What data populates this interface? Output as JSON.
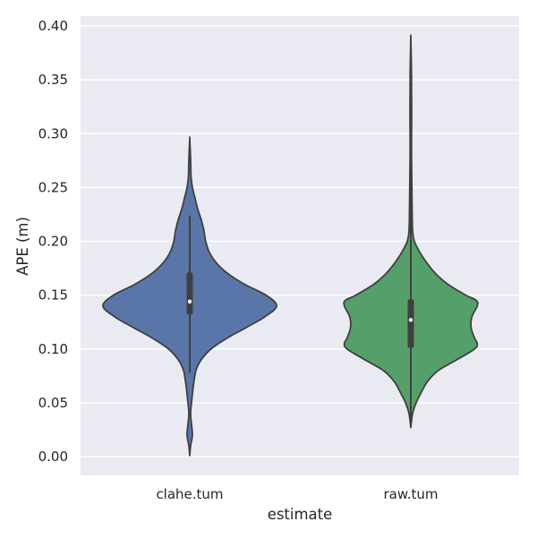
{
  "chart_data": {
    "type": "violin",
    "title": "",
    "xlabel": "estimate",
    "ylabel": "APE (m)",
    "ylim": [
      -0.017,
      0.408
    ],
    "yticks": [
      0.0,
      0.05,
      0.1,
      0.15,
      0.2,
      0.25,
      0.3,
      0.35,
      0.4
    ],
    "ytick_labels": [
      "0.00",
      "0.05",
      "0.10",
      "0.15",
      "0.20",
      "0.25",
      "0.30",
      "0.35",
      "0.40"
    ],
    "categories": [
      "clahe.tum",
      "raw.tum"
    ],
    "grid": true,
    "series": [
      {
        "name": "clahe.tum",
        "color": "#5a76a8",
        "median": 0.144,
        "q1": 0.132,
        "q3": 0.171,
        "whisker_low": 0.078,
        "whisker_high": 0.224,
        "density_profile": [
          [
            0.001,
            0.0
          ],
          [
            0.01,
            0.01
          ],
          [
            0.02,
            0.03
          ],
          [
            0.03,
            0.02
          ],
          [
            0.04,
            0.01
          ],
          [
            0.05,
            0.02
          ],
          [
            0.065,
            0.04
          ],
          [
            0.08,
            0.07
          ],
          [
            0.09,
            0.13
          ],
          [
            0.1,
            0.24
          ],
          [
            0.11,
            0.42
          ],
          [
            0.12,
            0.64
          ],
          [
            0.13,
            0.85
          ],
          [
            0.14,
            0.98
          ],
          [
            0.15,
            0.86
          ],
          [
            0.16,
            0.62
          ],
          [
            0.17,
            0.43
          ],
          [
            0.18,
            0.3
          ],
          [
            0.19,
            0.22
          ],
          [
            0.2,
            0.18
          ],
          [
            0.21,
            0.16
          ],
          [
            0.22,
            0.13
          ],
          [
            0.23,
            0.09
          ],
          [
            0.24,
            0.06
          ],
          [
            0.25,
            0.03
          ],
          [
            0.26,
            0.015
          ],
          [
            0.27,
            0.012
          ],
          [
            0.28,
            0.008
          ],
          [
            0.295,
            0.0
          ]
        ]
      },
      {
        "name": "raw.tum",
        "color": "#55a06a",
        "median": 0.127,
        "q1": 0.101,
        "q3": 0.146,
        "whisker_low": 0.027,
        "whisker_high": 0.388,
        "density_profile": [
          [
            0.027,
            0.0
          ],
          [
            0.04,
            0.02
          ],
          [
            0.05,
            0.06
          ],
          [
            0.06,
            0.12
          ],
          [
            0.07,
            0.19
          ],
          [
            0.08,
            0.31
          ],
          [
            0.09,
            0.52
          ],
          [
            0.1,
            0.72
          ],
          [
            0.105,
            0.75
          ],
          [
            0.11,
            0.72
          ],
          [
            0.12,
            0.68
          ],
          [
            0.13,
            0.69
          ],
          [
            0.14,
            0.75
          ],
          [
            0.145,
            0.74
          ],
          [
            0.15,
            0.62
          ],
          [
            0.16,
            0.42
          ],
          [
            0.17,
            0.28
          ],
          [
            0.18,
            0.18
          ],
          [
            0.19,
            0.1
          ],
          [
            0.2,
            0.04
          ],
          [
            0.21,
            0.02
          ],
          [
            0.23,
            0.015
          ],
          [
            0.25,
            0.012
          ],
          [
            0.28,
            0.008
          ],
          [
            0.3,
            0.008
          ],
          [
            0.32,
            0.01
          ],
          [
            0.34,
            0.008
          ],
          [
            0.36,
            0.007
          ],
          [
            0.388,
            0.0
          ]
        ]
      }
    ]
  }
}
